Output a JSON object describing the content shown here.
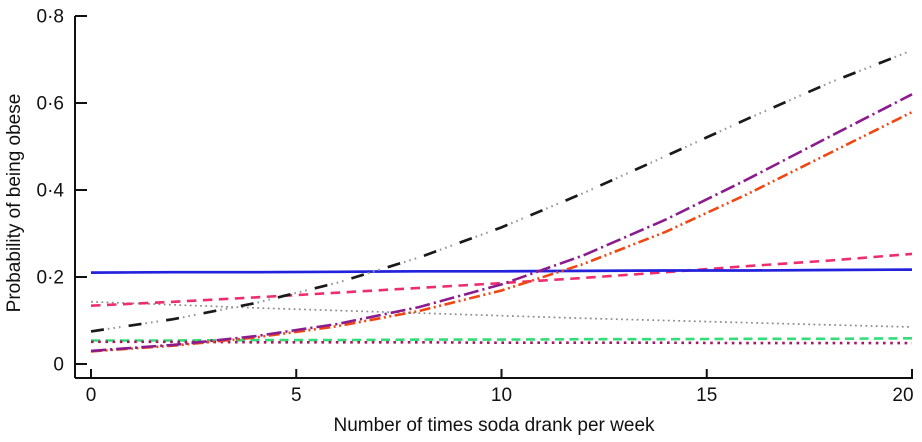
{
  "chart_data": {
    "type": "line",
    "title": "",
    "xlabel": "Number of times soda drank per week",
    "ylabel": "Probability of being obese",
    "xlim": [
      0,
      20
    ],
    "ylim": [
      0,
      0.8
    ],
    "grid": false,
    "legend": "none",
    "axis_color": "#111111",
    "x_ticks": [
      {
        "value": 0,
        "label": "0"
      },
      {
        "value": 5,
        "label": "5"
      },
      {
        "value": 10,
        "label": "10"
      },
      {
        "value": 15,
        "label": "15"
      },
      {
        "value": 20,
        "label": "20"
      }
    ],
    "y_ticks": [
      {
        "value": 0,
        "label": "0"
      },
      {
        "value": 0.2,
        "label": "0·2"
      },
      {
        "value": 0.4,
        "label": "0·4"
      },
      {
        "value": 0.6,
        "label": "0·6"
      },
      {
        "value": 0.8,
        "label": "0·8"
      }
    ],
    "x": [
      0,
      2,
      4,
      6,
      8,
      10,
      12,
      14,
      16,
      18,
      20
    ],
    "series": [
      {
        "id": "grey-dotted-declining",
        "color": "#8c8c8c",
        "width": 1.7,
        "dash": "1.8 3.4",
        "values": [
          0.143,
          0.136,
          0.129,
          0.123,
          0.117,
          0.111,
          0.105,
          0.1,
          0.095,
          0.09,
          0.085
        ]
      },
      {
        "id": "green-dashed-flat",
        "color": "#33dd77",
        "width": 2.6,
        "dash": "9 5.5",
        "values": [
          0.054,
          0.054,
          0.055,
          0.055,
          0.056,
          0.056,
          0.057,
          0.057,
          0.058,
          0.058,
          0.059
        ]
      },
      {
        "id": "magenta-dotted-flat",
        "color": "#a61865",
        "width": 2.6,
        "dash": "2.6 4.6",
        "values": [
          0.051,
          0.051,
          0.05,
          0.05,
          0.05,
          0.049,
          0.049,
          0.049,
          0.048,
          0.048,
          0.048
        ]
      },
      {
        "id": "pink-dashed-rising",
        "color": "#ee2d6e",
        "width": 2.6,
        "dash": "9.5 6.5",
        "values": [
          0.134,
          0.143,
          0.153,
          0.164,
          0.175,
          0.186,
          0.198,
          0.211,
          0.225,
          0.238,
          0.253
        ]
      },
      {
        "id": "blue-solid-flat",
        "color": "#2222dd",
        "width": 2.7,
        "dash": "",
        "values": [
          0.21,
          0.211,
          0.211,
          0.212,
          0.213,
          0.213,
          0.214,
          0.215,
          0.215,
          0.216,
          0.217
        ]
      },
      {
        "id": "orange-dash-dot-rising",
        "color": "#f04712",
        "width": 2.6,
        "dash": "11 3.5 2 3.5 2 3.5",
        "values": [
          0.029,
          0.042,
          0.061,
          0.087,
          0.122,
          0.169,
          0.23,
          0.304,
          0.391,
          0.485,
          0.579
        ]
      },
      {
        "id": "purple-long-dash-rising",
        "color": "#8b1c8e",
        "width": 2.6,
        "dash": "15 4 2.2 4",
        "values": [
          0.03,
          0.044,
          0.064,
          0.092,
          0.131,
          0.183,
          0.25,
          0.332,
          0.425,
          0.523,
          0.62
        ]
      },
      {
        "id": "black-dash-dot-dot-rising-steep",
        "color": "#1a1a1a",
        "width": 2.7,
        "dash": "13 25",
        "dots": {
          "color": "#999999",
          "dash": "1.6 4 1.6 4 1.6 25.2",
          "offset": -17
        },
        "values": [
          0.075,
          0.103,
          0.14,
          0.187,
          0.245,
          0.314,
          0.393,
          0.478,
          0.564,
          0.647,
          0.721
        ]
      }
    ]
  }
}
